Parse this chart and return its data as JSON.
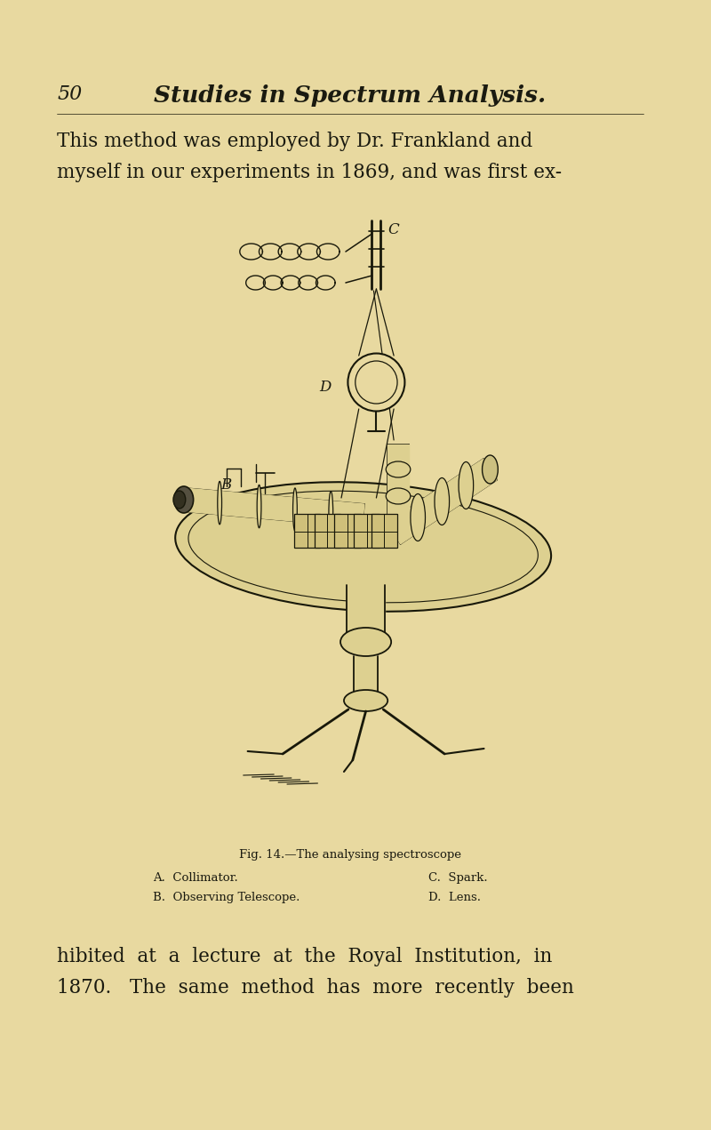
{
  "bg_color": "#e8d9a0",
  "text_color": "#1a1a10",
  "page_num": "50",
  "header_title": "Studies in Spectrum Analysis.",
  "para1_line1": "This method was employed by Dr. Frankland and",
  "para1_line2": "myself in our experiments in 1869, and was first ex-",
  "fig_caption": "Fig. 14.—The analysing spectroscope",
  "fig_label_A": "A.  Collimator.",
  "fig_label_B": "B.  Observing Telescope.",
  "fig_label_C": "C.  Spark.",
  "fig_label_D": "D.  Lens.",
  "para2_line1": "hibited  at  a  lecture  at  the  Royal  Institution,  in",
  "para2_line2": "1870.   The  same  method  has  more  recently  been",
  "font_size_header": 19,
  "font_size_page_num": 16,
  "font_size_body": 15.5,
  "font_size_caption": 9.5,
  "font_size_labels": 9.5,
  "lc": "#18180a"
}
